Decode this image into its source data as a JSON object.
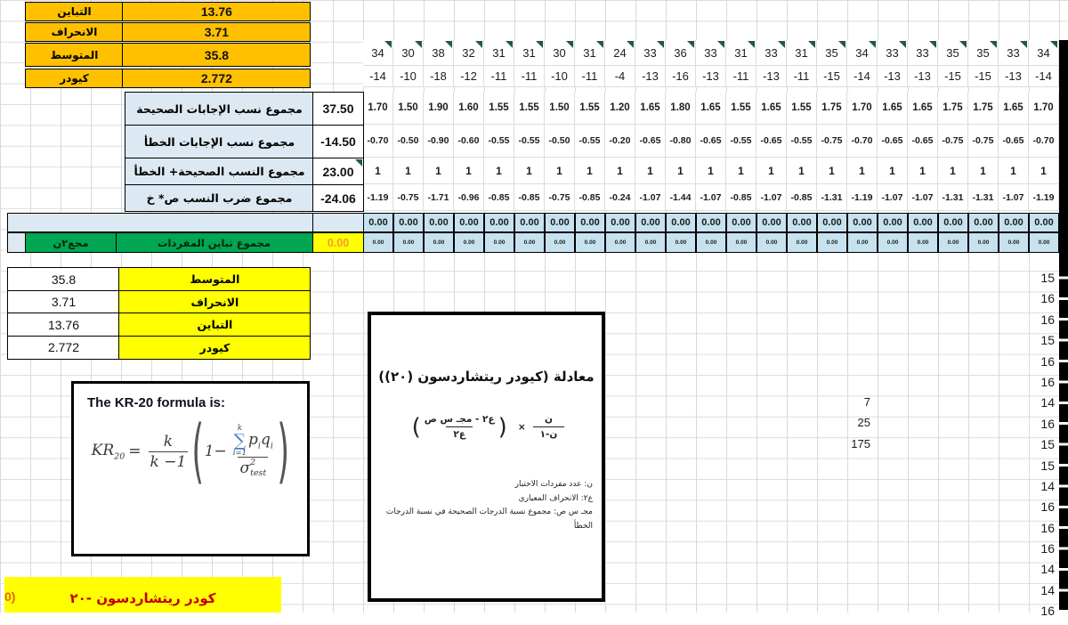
{
  "top_stats": {
    "rows": [
      {
        "label": "التباين",
        "value": "13.76"
      },
      {
        "label": "الانحراف",
        "value": "3.71"
      },
      {
        "label": "المتوسط",
        "value": "35.8"
      },
      {
        "label": "كيودر",
        "value": "2.772"
      }
    ]
  },
  "item_grid": {
    "scores": [
      "34",
      "30",
      "38",
      "32",
      "31",
      "31",
      "30",
      "31",
      "24",
      "33",
      "36",
      "33",
      "31",
      "33",
      "31",
      "35",
      "34",
      "33",
      "33",
      "35",
      "35",
      "33",
      "34"
    ],
    "score_minus": [
      "-14",
      "-10",
      "-18",
      "-12",
      "-11",
      "-11",
      "-10",
      "-11",
      "-4",
      "-13",
      "-16",
      "-13",
      "-11",
      "-13",
      "-11",
      "-15",
      "-14",
      "-13",
      "-13",
      "-15",
      "-15",
      "-13",
      "-14"
    ],
    "p_values": [
      "1.70",
      "1.50",
      "1.90",
      "1.60",
      "1.55",
      "1.55",
      "1.50",
      "1.55",
      "1.20",
      "1.65",
      "1.80",
      "1.65",
      "1.55",
      "1.65",
      "1.55",
      "1.75",
      "1.70",
      "1.65",
      "1.65",
      "1.75",
      "1.75",
      "1.65",
      "1.70"
    ],
    "q_values": [
      "-0.70",
      "-0.50",
      "-0.90",
      "-0.60",
      "-0.55",
      "-0.55",
      "-0.50",
      "-0.55",
      "-0.20",
      "-0.65",
      "-0.80",
      "-0.65",
      "-0.55",
      "-0.65",
      "-0.55",
      "-0.75",
      "-0.70",
      "-0.65",
      "-0.65",
      "-0.75",
      "-0.75",
      "-0.65",
      "-0.70"
    ],
    "ones": [
      "1",
      "1",
      "1",
      "1",
      "1",
      "1",
      "1",
      "1",
      "1",
      "1",
      "1",
      "1",
      "1",
      "1",
      "1",
      "1",
      "1",
      "1",
      "1",
      "1",
      "1",
      "1",
      "1"
    ],
    "pq_products": [
      "-1.19",
      "-0.75",
      "-1.71",
      "-0.96",
      "-0.85",
      "-0.85",
      "-0.75",
      "-0.85",
      "-0.24",
      "-1.07",
      "-1.44",
      "-1.07",
      "-0.85",
      "-1.07",
      "-0.85",
      "-1.31",
      "-1.19",
      "-1.07",
      "-1.07",
      "-1.31",
      "-1.31",
      "-1.07",
      "-1.19"
    ],
    "variance_bold": [
      "0.00",
      "0.00",
      "0.00",
      "0.00",
      "0.00",
      "0.00",
      "0.00",
      "0.00",
      "0.00",
      "0.00",
      "0.00",
      "0.00",
      "0.00",
      "0.00",
      "0.00",
      "0.00",
      "0.00",
      "0.00",
      "0.00",
      "0.00",
      "0.00",
      "0.00",
      "0.00"
    ],
    "variance_small": [
      "0.00",
      "0.00",
      "0.00",
      "0.00",
      "0.00",
      "0.00",
      "0.00",
      "0.00",
      "0.00",
      "0.00",
      "0.00",
      "0.00",
      "0.00",
      "0.00",
      "0.00",
      "0.00",
      "0.00",
      "0.00",
      "0.00",
      "0.00",
      "0.00",
      "0.00",
      "0.00"
    ]
  },
  "summary_rows": [
    {
      "label": "مجموع نسب الإجابات الصحيحة",
      "value": "37.50"
    },
    {
      "label": "مجموع نسب الإجابات الخطأ",
      "value": "-14.50"
    },
    {
      "label": "مجموع النسب الصحيحة+ الخطأ",
      "value": "23.00"
    },
    {
      "label": "مجموع ضرب النسب ص* خ",
      "value": "-24.06"
    }
  ],
  "variance_total_row": {
    "left_label": "مجع٢ن",
    "label": "مجموع تباين المفردات",
    "value": "0.00"
  },
  "stats_table": [
    {
      "value": "35.8",
      "label": "المتوسط"
    },
    {
      "value": "3.71",
      "label": "الانحراف"
    },
    {
      "value": "13.76",
      "label": "التباين"
    },
    {
      "value": "2.772",
      "label": "كيودر"
    }
  ],
  "kr20_box": {
    "title": "The KR-20 formula is:",
    "lhs": "KR",
    "lhs_sub": "20",
    "equals": "=",
    "frac_num": "k",
    "frac_den": "k −1",
    "paren_open": "(",
    "paren_close": ")",
    "one_minus": "1−",
    "sum_top": "k",
    "sum_symbol": "∑",
    "sum_bottom": "i=1",
    "p": "p",
    "q": "q",
    "i_sub": "i",
    "sigma": "σ",
    "sigma_sup": "2",
    "sigma_sub": "test"
  },
  "arabic_box": {
    "title": "معادلة (كيودر ريتشاردسون (٢٠))",
    "frac1_num": "ن",
    "frac1_den": "ن-١",
    "times": "×",
    "paren_open": "(",
    "paren_close": ")",
    "frac2_num": "ع٢ - مجـ س ص",
    "frac2_den": "ع٢",
    "notes": [
      "ن: عدد مفردات الاختبار",
      "ع٢: الانحراف المعياري",
      "مجـ س ص: مجموع نسبة الدرجات الصحيحة في نسبة الدرجات الخطأ"
    ]
  },
  "aux_numbers": [
    "7",
    "25",
    "175"
  ],
  "right_column": [
    "15",
    "16",
    "16",
    "15",
    "16",
    "16",
    "14",
    "16",
    "15",
    "15",
    "14",
    "16",
    "16",
    "16",
    "14",
    "14",
    "16"
  ],
  "bottom_bar": {
    "prefix": "0)",
    "label": "كودر ريتشاردسون -٢٠"
  },
  "colors": {
    "orange": "#FFC000",
    "light_blue": "#DCE9F2",
    "cell_blue": "#C7E2EF",
    "green": "#00A651",
    "yellow": "#FFFF00",
    "title_red": "#C00000",
    "comment_green": "#1F5C3A",
    "sum_blue": "#4A7DBE",
    "value_orange": "#ED9D3C"
  }
}
